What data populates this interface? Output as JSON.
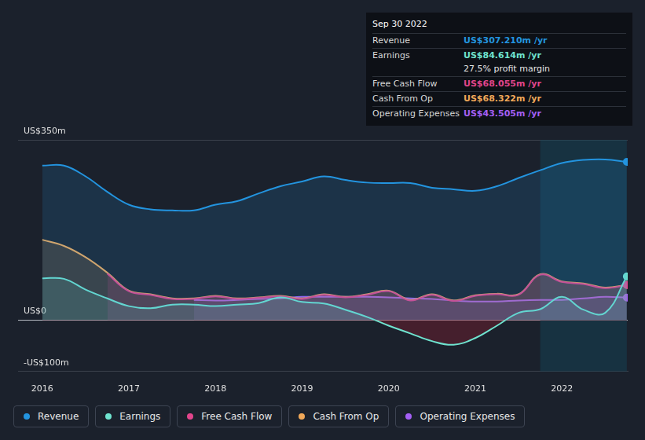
{
  "chart_data": {
    "type": "line",
    "x": [
      2016,
      2016.25,
      2016.5,
      2016.75,
      2017,
      2017.25,
      2017.5,
      2017.75,
      2018,
      2018.25,
      2018.5,
      2018.75,
      2019,
      2019.25,
      2019.5,
      2019.75,
      2020,
      2020.25,
      2020.5,
      2020.75,
      2021,
      2021.25,
      2021.5,
      2021.75,
      2022,
      2022.25,
      2022.5,
      2022.75
    ],
    "series": [
      {
        "name": "Revenue",
        "color": "#2394df",
        "values": [
          300,
          300,
          279,
          249,
          224,
          215,
          213,
          213,
          224,
          231,
          246,
          260,
          269,
          279,
          272,
          267,
          266,
          266,
          257,
          254,
          251,
          260,
          276,
          291,
          305,
          311,
          312,
          307.21
        ]
      },
      {
        "name": "Earnings",
        "color": "#6fe3cf",
        "values": [
          81,
          80,
          59,
          42,
          27,
          23,
          30,
          30,
          27,
          30,
          33,
          44,
          35,
          32,
          20,
          6,
          -11,
          -26,
          -41,
          -48,
          -35,
          -11,
          14,
          21,
          45,
          20,
          14,
          84.614
        ]
      },
      {
        "name": "Free Cash Flow",
        "color": "#e2458c",
        "values": [
          null,
          null,
          null,
          90,
          56,
          49,
          41,
          41,
          46,
          41,
          43,
          46,
          41,
          49,
          44,
          49,
          56,
          38,
          49,
          37,
          47,
          50,
          49,
          88,
          74,
          70,
          62,
          68.055
        ]
      },
      {
        "name": "Cash From Op",
        "color": "#f0a859",
        "values": [
          156,
          144,
          122,
          92,
          57,
          50,
          42,
          42,
          47,
          42,
          44,
          47,
          42,
          50,
          45,
          50,
          57,
          39,
          50,
          38,
          48,
          51,
          50,
          89,
          75,
          71,
          63,
          68.322
        ]
      },
      {
        "name": "Operating Expenses",
        "color": "#a45ff5",
        "values": [
          null,
          null,
          null,
          null,
          null,
          null,
          null,
          39,
          38,
          39,
          41,
          42,
          45,
          45,
          45,
          45,
          44,
          42,
          41,
          38,
          36,
          36,
          38,
          39,
          39,
          42,
          45,
          43.505
        ]
      }
    ],
    "xlim": [
      2015.72,
      2022.76
    ],
    "xticks": [
      2016,
      2017,
      2018,
      2019,
      2020,
      2021,
      2022
    ],
    "ylim": [
      -100,
      350
    ],
    "yticks": [
      {
        "value": -100,
        "label": "-US$100m"
      },
      {
        "value": 0,
        "label": "US$0"
      },
      {
        "value": 350,
        "label": "US$350m"
      }
    ],
    "grid": true,
    "legend": "bottom",
    "shaded_range": [
      2021.75,
      2022.75
    ],
    "info_box": {
      "title": "Sep 30 2022",
      "rows": [
        {
          "label": "Revenue",
          "value": "US$307.210m /yr"
        },
        {
          "label": "Earnings",
          "value": "US$84.614m /yr"
        },
        {
          "note": "27.5% profit margin"
        },
        {
          "label": "Free Cash Flow",
          "value": "US$68.055m /yr"
        },
        {
          "label": "Cash From Op",
          "value": "US$68.322m /yr"
        },
        {
          "label": "Operating Expenses",
          "value": "US$43.505m /yr"
        }
      ]
    }
  }
}
